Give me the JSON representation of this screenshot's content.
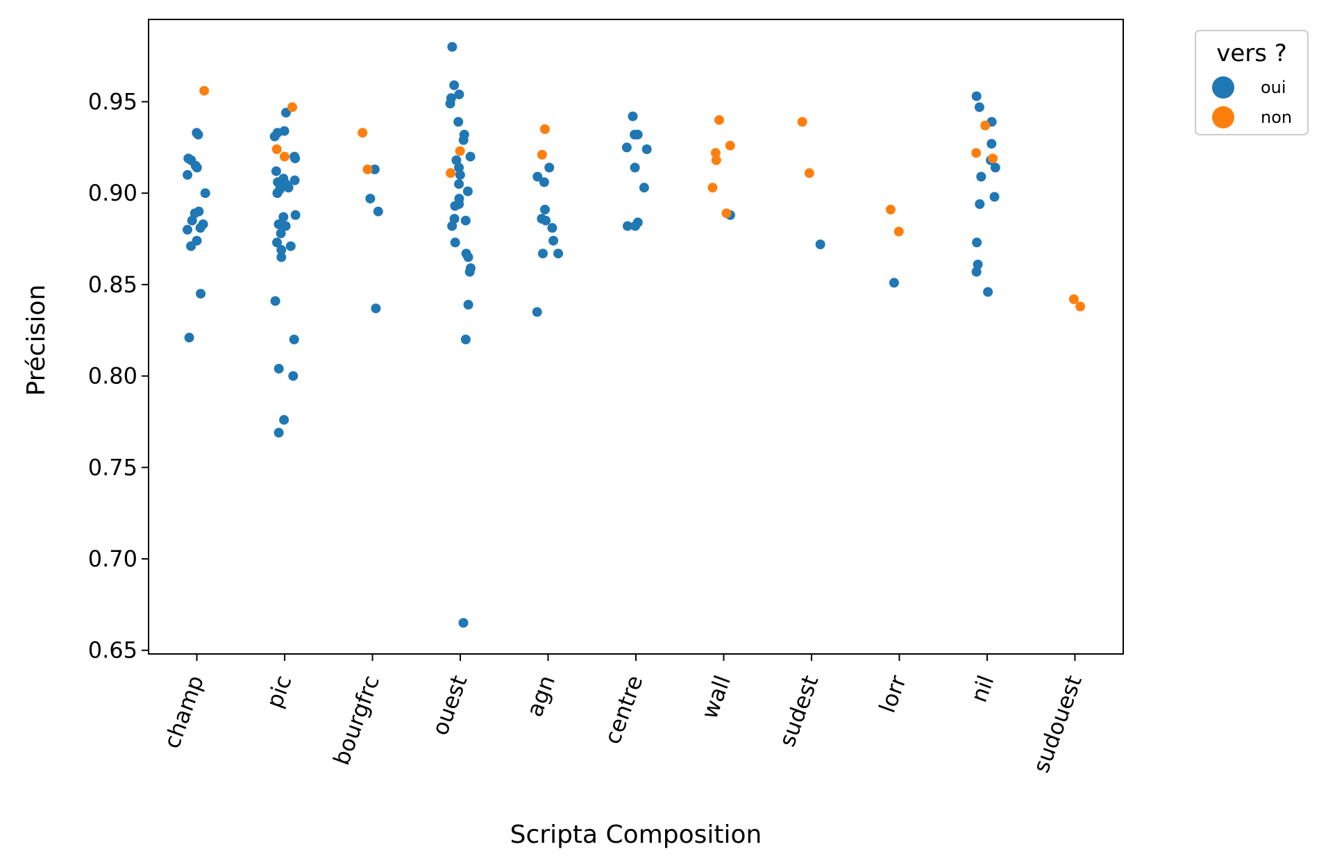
{
  "chart_data": {
    "type": "scatter",
    "title": "",
    "xlabel": "Scripta Composition",
    "ylabel": "Précision",
    "ylim": [
      0.648,
      0.995
    ],
    "yticks": [
      "0.65",
      "0.70",
      "0.75",
      "0.80",
      "0.85",
      "0.90",
      "0.95"
    ],
    "categories": [
      "champ",
      "pic",
      "bourgfrc",
      "ouest",
      "agn",
      "centre",
      "wall",
      "sudest",
      "lorr",
      "nil",
      "sudouest"
    ],
    "legend": {
      "title": "vers ?",
      "placement": "outside-top-right"
    },
    "series": [
      {
        "name": "oui",
        "color": "#1f77b4",
        "points": [
          [
            "champ",
            0.933
          ],
          [
            "champ",
            0.932
          ],
          [
            "champ",
            0.919
          ],
          [
            "champ",
            0.918
          ],
          [
            "champ",
            0.915
          ],
          [
            "champ",
            0.914
          ],
          [
            "champ",
            0.91
          ],
          [
            "champ",
            0.9
          ],
          [
            "champ",
            0.89
          ],
          [
            "champ",
            0.889
          ],
          [
            "champ",
            0.885
          ],
          [
            "champ",
            0.883
          ],
          [
            "champ",
            0.881
          ],
          [
            "champ",
            0.88
          ],
          [
            "champ",
            0.874
          ],
          [
            "champ",
            0.871
          ],
          [
            "champ",
            0.845
          ],
          [
            "champ",
            0.821
          ],
          [
            "pic",
            0.944
          ],
          [
            "pic",
            0.934
          ],
          [
            "pic",
            0.933
          ],
          [
            "pic",
            0.931
          ],
          [
            "pic",
            0.92
          ],
          [
            "pic",
            0.919
          ],
          [
            "pic",
            0.912
          ],
          [
            "pic",
            0.908
          ],
          [
            "pic",
            0.907
          ],
          [
            "pic",
            0.906
          ],
          [
            "pic",
            0.905
          ],
          [
            "pic",
            0.905
          ],
          [
            "pic",
            0.903
          ],
          [
            "pic",
            0.902
          ],
          [
            "pic",
            0.9
          ],
          [
            "pic",
            0.888
          ],
          [
            "pic",
            0.887
          ],
          [
            "pic",
            0.883
          ],
          [
            "pic",
            0.882
          ],
          [
            "pic",
            0.878
          ],
          [
            "pic",
            0.873
          ],
          [
            "pic",
            0.871
          ],
          [
            "pic",
            0.869
          ],
          [
            "pic",
            0.865
          ],
          [
            "pic",
            0.841
          ],
          [
            "pic",
            0.82
          ],
          [
            "pic",
            0.804
          ],
          [
            "pic",
            0.8
          ],
          [
            "pic",
            0.776
          ],
          [
            "pic",
            0.769
          ],
          [
            "bourgfrc",
            0.913
          ],
          [
            "bourgfrc",
            0.897
          ],
          [
            "bourgfrc",
            0.89
          ],
          [
            "bourgfrc",
            0.837
          ],
          [
            "ouest",
            0.98
          ],
          [
            "ouest",
            0.959
          ],
          [
            "ouest",
            0.954
          ],
          [
            "ouest",
            0.952
          ],
          [
            "ouest",
            0.949
          ],
          [
            "ouest",
            0.939
          ],
          [
            "ouest",
            0.932
          ],
          [
            "ouest",
            0.929
          ],
          [
            "ouest",
            0.92
          ],
          [
            "ouest",
            0.918
          ],
          [
            "ouest",
            0.914
          ],
          [
            "ouest",
            0.91
          ],
          [
            "ouest",
            0.905
          ],
          [
            "ouest",
            0.901
          ],
          [
            "ouest",
            0.897
          ],
          [
            "ouest",
            0.894
          ],
          [
            "ouest",
            0.893
          ],
          [
            "ouest",
            0.886
          ],
          [
            "ouest",
            0.885
          ],
          [
            "ouest",
            0.882
          ],
          [
            "ouest",
            0.873
          ],
          [
            "ouest",
            0.867
          ],
          [
            "ouest",
            0.865
          ],
          [
            "ouest",
            0.859
          ],
          [
            "ouest",
            0.857
          ],
          [
            "ouest",
            0.839
          ],
          [
            "ouest",
            0.82
          ],
          [
            "ouest",
            0.665
          ],
          [
            "agn",
            0.914
          ],
          [
            "agn",
            0.909
          ],
          [
            "agn",
            0.906
          ],
          [
            "agn",
            0.891
          ],
          [
            "agn",
            0.886
          ],
          [
            "agn",
            0.885
          ],
          [
            "agn",
            0.881
          ],
          [
            "agn",
            0.874
          ],
          [
            "agn",
            0.867
          ],
          [
            "agn",
            0.867
          ],
          [
            "agn",
            0.835
          ],
          [
            "centre",
            0.942
          ],
          [
            "centre",
            0.932
          ],
          [
            "centre",
            0.932
          ],
          [
            "centre",
            0.925
          ],
          [
            "centre",
            0.924
          ],
          [
            "centre",
            0.914
          ],
          [
            "centre",
            0.903
          ],
          [
            "centre",
            0.884
          ],
          [
            "centre",
            0.882
          ],
          [
            "centre",
            0.882
          ],
          [
            "wall",
            0.888
          ],
          [
            "sudest",
            0.872
          ],
          [
            "lorr",
            0.851
          ],
          [
            "nil",
            0.953
          ],
          [
            "nil",
            0.947
          ],
          [
            "nil",
            0.939
          ],
          [
            "nil",
            0.927
          ],
          [
            "nil",
            0.918
          ],
          [
            "nil",
            0.914
          ],
          [
            "nil",
            0.909
          ],
          [
            "nil",
            0.898
          ],
          [
            "nil",
            0.894
          ],
          [
            "nil",
            0.873
          ],
          [
            "nil",
            0.861
          ],
          [
            "nil",
            0.857
          ],
          [
            "nil",
            0.846
          ]
        ]
      },
      {
        "name": "non",
        "color": "#ff7f0e",
        "points": [
          [
            "champ",
            0.956
          ],
          [
            "pic",
            0.947
          ],
          [
            "pic",
            0.924
          ],
          [
            "pic",
            0.92
          ],
          [
            "bourgfrc",
            0.933
          ],
          [
            "bourgfrc",
            0.913
          ],
          [
            "ouest",
            0.923
          ],
          [
            "ouest",
            0.911
          ],
          [
            "agn",
            0.935
          ],
          [
            "agn",
            0.921
          ],
          [
            "wall",
            0.94
          ],
          [
            "wall",
            0.926
          ],
          [
            "wall",
            0.922
          ],
          [
            "wall",
            0.918
          ],
          [
            "wall",
            0.903
          ],
          [
            "wall",
            0.889
          ],
          [
            "sudest",
            0.939
          ],
          [
            "sudest",
            0.911
          ],
          [
            "lorr",
            0.891
          ],
          [
            "lorr",
            0.879
          ],
          [
            "nil",
            0.937
          ],
          [
            "nil",
            0.922
          ],
          [
            "nil",
            0.919
          ],
          [
            "sudouest",
            0.842
          ],
          [
            "sudouest",
            0.838
          ]
        ]
      }
    ]
  }
}
